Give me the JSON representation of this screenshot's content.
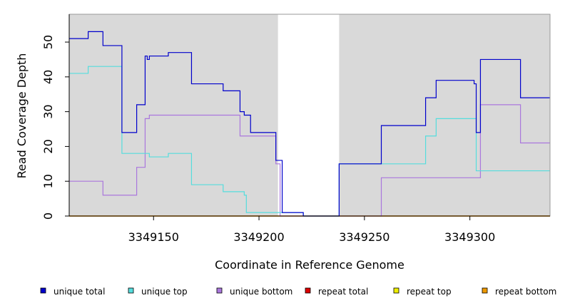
{
  "chart_data": {
    "type": "line",
    "xlabel": "Coordinate in Reference Genome",
    "ylabel": "Read Coverage Depth",
    "xlim": [
      3349110,
      3349338
    ],
    "ylim": [
      0,
      58
    ],
    "x_ticks": [
      3349150,
      3349200,
      3349250,
      3349300
    ],
    "y_ticks": [
      0,
      10,
      20,
      30,
      40,
      50
    ],
    "x_tick_labels": [
      "3349150",
      "3349200",
      "3349250",
      "3349300"
    ],
    "y_tick_labels": [
      "0",
      "10",
      "20",
      "30",
      "40",
      "50"
    ],
    "shaded_regions": [
      [
        3349110,
        3349209
      ],
      [
        3349238,
        3349338
      ]
    ],
    "grid": false,
    "legend_position": "bottom",
    "series": [
      {
        "name": "unique total",
        "color": "#0000cc",
        "x": [
          3349110,
          3349119,
          3349126,
          3349135,
          3349142,
          3349146,
          3349147,
          3349148,
          3349157,
          3349168,
          3349183,
          3349191,
          3349193,
          3349196,
          3349208,
          3349211,
          3349221,
          3349238,
          3349258,
          3349279,
          3349284,
          3349302,
          3349303,
          3349305,
          3349324,
          3349338
        ],
        "y": [
          51,
          53,
          49,
          24,
          32,
          46,
          45,
          46,
          47,
          38,
          36,
          30,
          29,
          24,
          16,
          1,
          0,
          15,
          26,
          34,
          39,
          38,
          24,
          45,
          34,
          34
        ]
      },
      {
        "name": "unique top",
        "color": "#55dddd",
        "x": [
          3349110,
          3349119,
          3349135,
          3349148,
          3349157,
          3349168,
          3349183,
          3349193,
          3349194,
          3349208,
          3349211,
          3349221,
          3349238,
          3349279,
          3349284,
          3349302,
          3349303,
          3349338
        ],
        "y": [
          41,
          43,
          18,
          17,
          18,
          9,
          7,
          6,
          1,
          1,
          1,
          0,
          15,
          23,
          28,
          28,
          13,
          13
        ],
        "color_note": "teal"
      },
      {
        "name": "unique bottom",
        "color": "#aa77dd",
        "x": [
          3349110,
          3349126,
          3349142,
          3349146,
          3349148,
          3349191,
          3349208,
          3349210,
          3349258,
          3349305,
          3349324,
          3349338
        ],
        "y": [
          10,
          6,
          14,
          28,
          29,
          23,
          15,
          0,
          11,
          32,
          21,
          21
        ]
      },
      {
        "name": "repeat total",
        "color": "#dd0000",
        "x": [
          3349110,
          3349338
        ],
        "y": [
          0,
          0
        ]
      },
      {
        "name": "repeat top",
        "color": "#eeee00",
        "x": [
          3349110,
          3349338
        ],
        "y": [
          0,
          0
        ]
      },
      {
        "name": "repeat bottom",
        "color": "#ee9900",
        "x": [
          3349110,
          3349338
        ],
        "y": [
          0,
          0
        ]
      }
    ]
  }
}
